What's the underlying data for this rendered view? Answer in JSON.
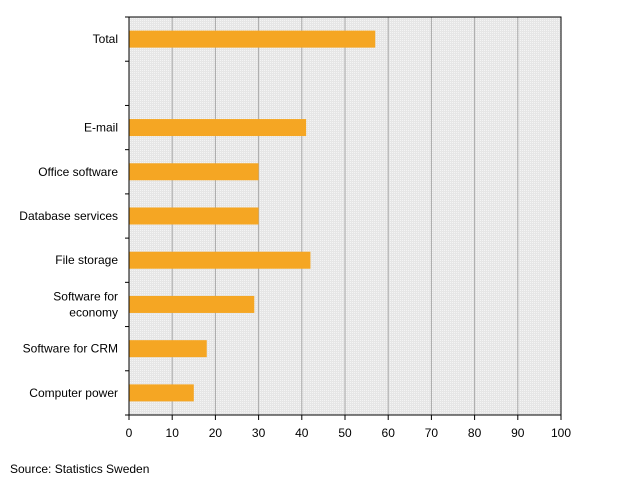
{
  "chart_data": {
    "type": "bar",
    "orientation": "horizontal",
    "categories": [
      "Total",
      "",
      "E-mail",
      "Office software",
      "Database services",
      "File storage",
      "Software for economy",
      "Software for CRM",
      "Computer power"
    ],
    "category_lines": [
      [
        "Total"
      ],
      [],
      [
        "E-mail"
      ],
      [
        "Office software"
      ],
      [
        "Database services"
      ],
      [
        "File storage"
      ],
      [
        "Software for",
        "economy"
      ],
      [
        "Software for CRM"
      ],
      [
        "Computer power"
      ]
    ],
    "values": [
      57,
      null,
      41,
      30,
      30,
      42,
      29,
      18,
      15
    ],
    "xlim": [
      0,
      100
    ],
    "xticks": [
      0,
      10,
      20,
      30,
      40,
      50,
      60,
      70,
      80,
      90,
      100
    ],
    "grid": true,
    "legend": "none",
    "title": "",
    "xlabel": "",
    "ylabel": ""
  },
  "colors": {
    "bar": "#F5A623",
    "plot_background": "#E8E8E8",
    "gridline": "#A8A8A8",
    "axis": "#000000"
  },
  "source": "Source:  Statistics Sweden"
}
